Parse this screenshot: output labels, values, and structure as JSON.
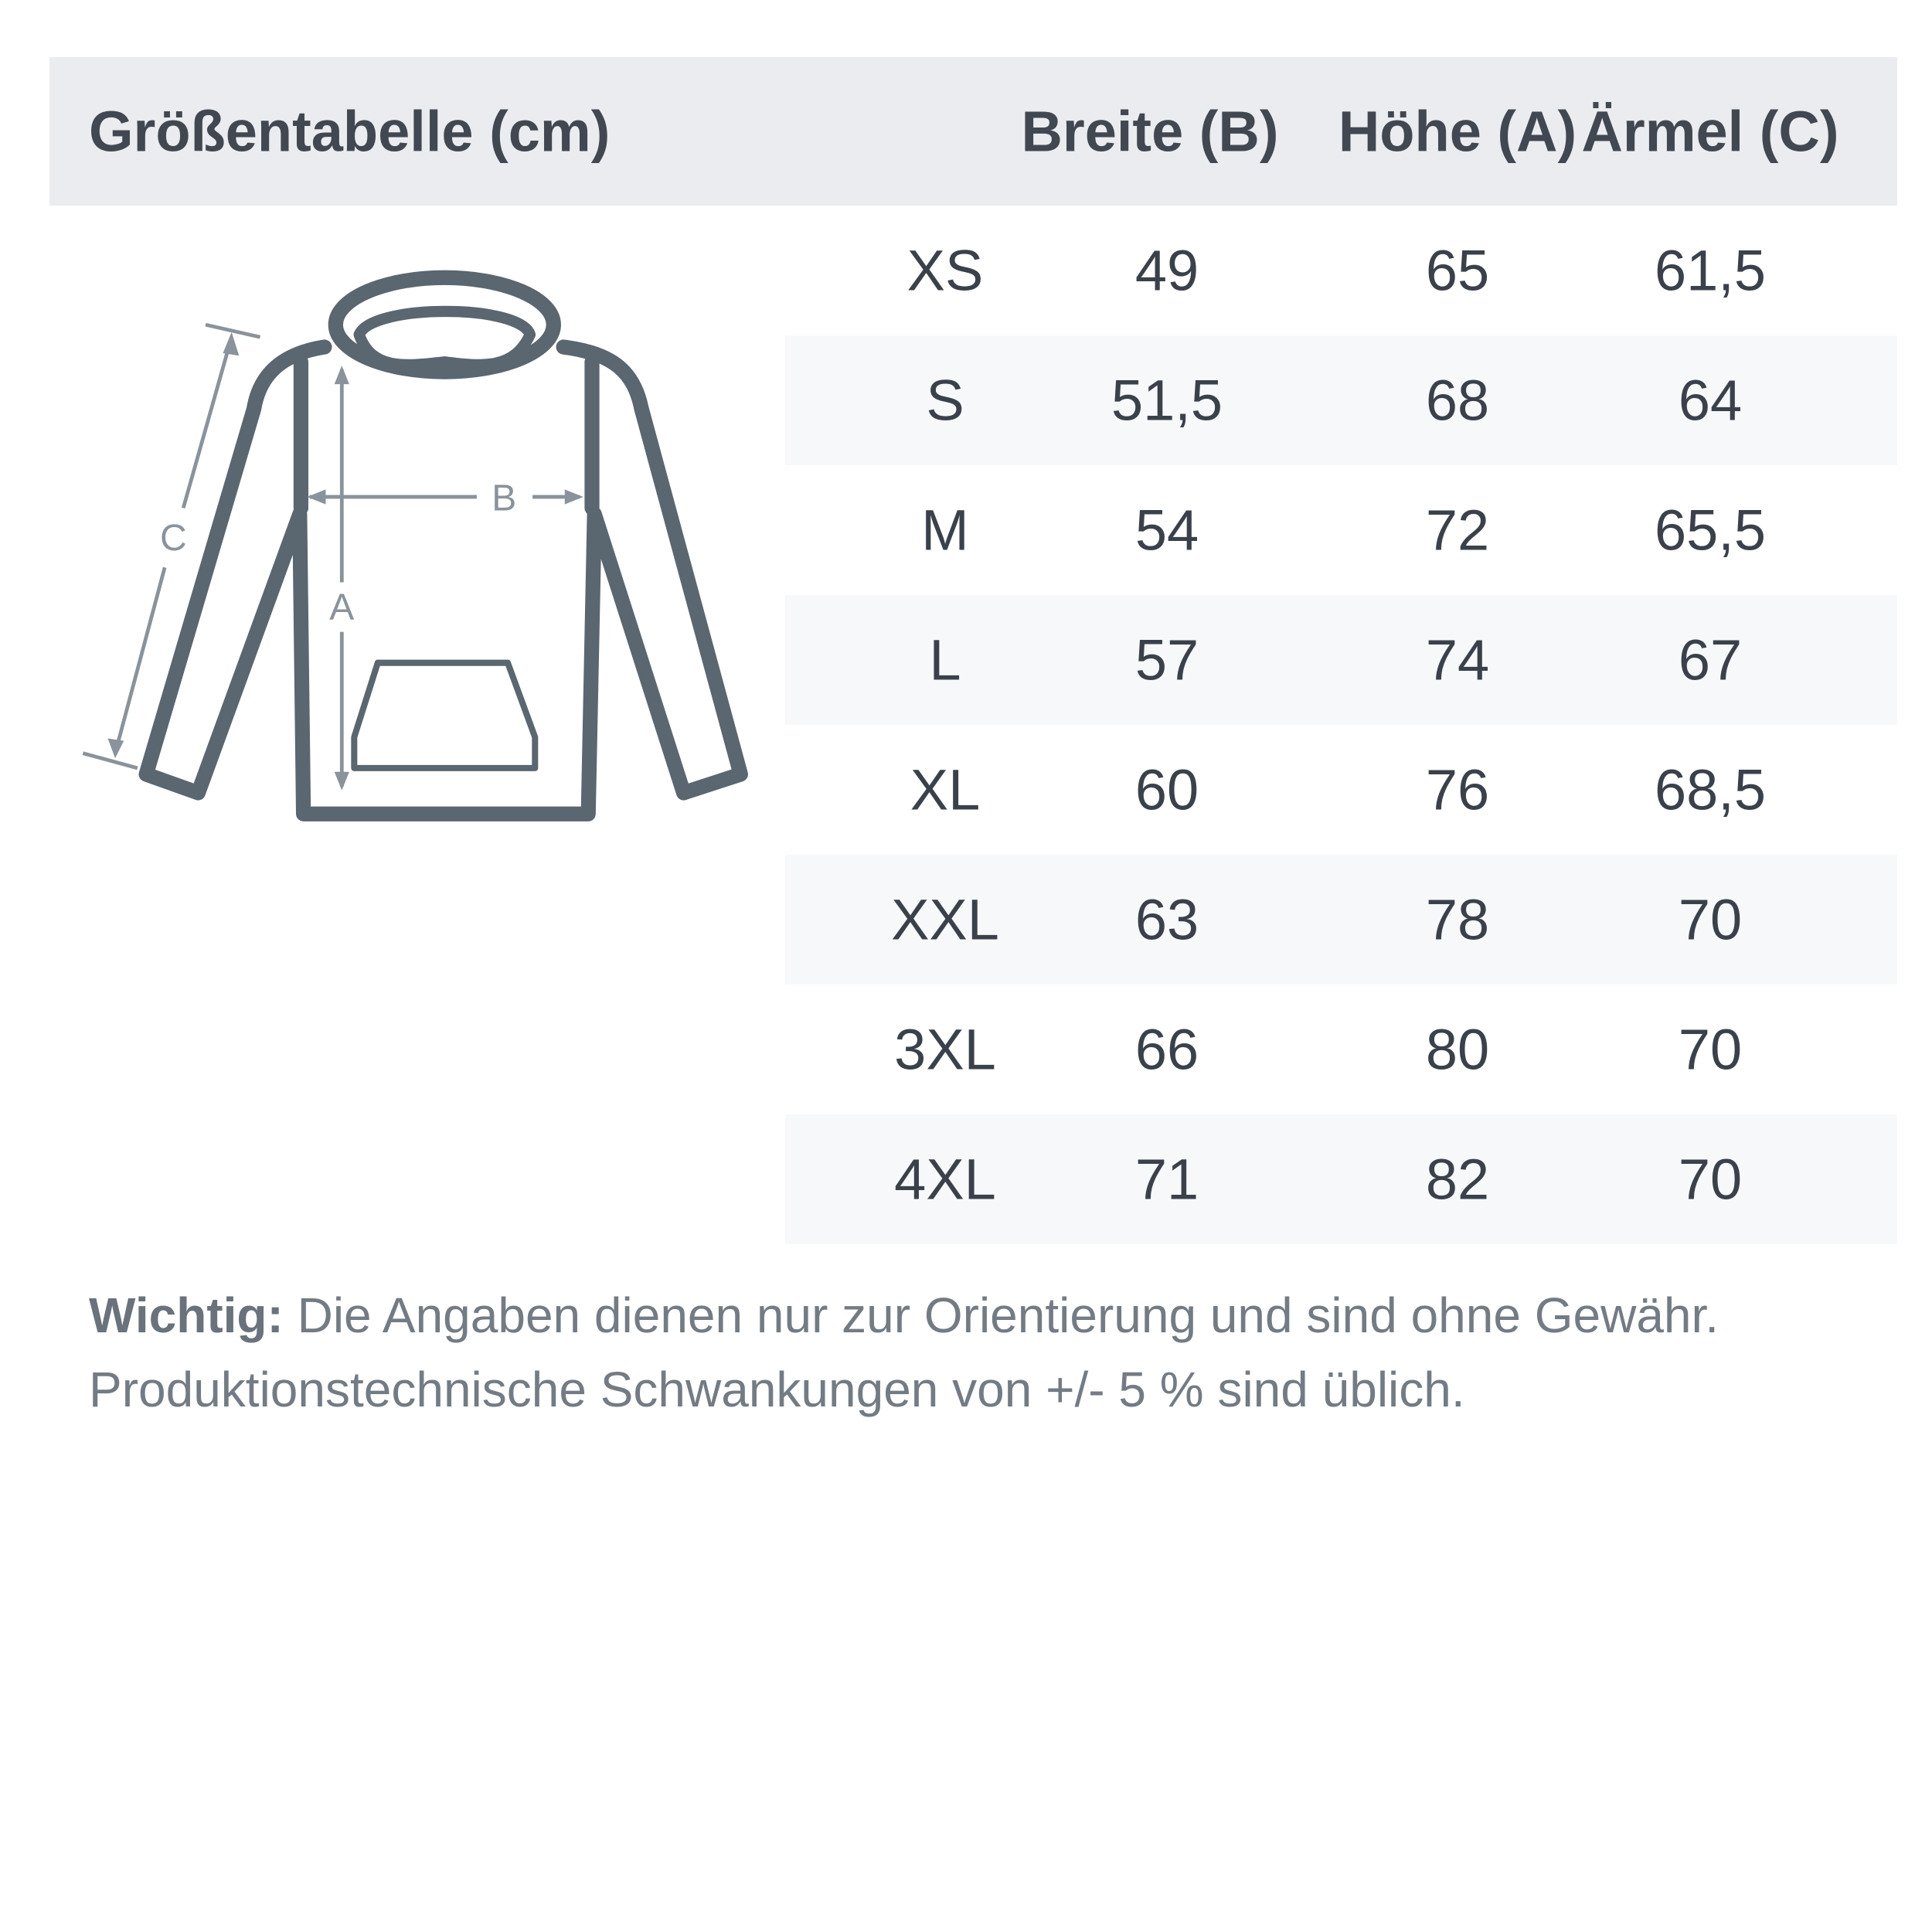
{
  "header": {
    "title": "Größentabelle (cm)",
    "columns": [
      "Breite (B)",
      "Höhe (A)",
      "Ärmel (C)"
    ]
  },
  "diagram": {
    "icon": "hoodie-measurement-icon",
    "labels": {
      "width": "B",
      "height": "A",
      "sleeve": "C"
    }
  },
  "rows": [
    {
      "size": "XS",
      "breite": "49",
      "hoehe": "65",
      "aermel": "61,5"
    },
    {
      "size": "S",
      "breite": "51,5",
      "hoehe": "68",
      "aermel": "64"
    },
    {
      "size": "M",
      "breite": "54",
      "hoehe": "72",
      "aermel": "65,5"
    },
    {
      "size": "L",
      "breite": "57",
      "hoehe": "74",
      "aermel": "67"
    },
    {
      "size": "XL",
      "breite": "60",
      "hoehe": "76",
      "aermel": "68,5"
    },
    {
      "size": "XXL",
      "breite": "63",
      "hoehe": "78",
      "aermel": "70"
    },
    {
      "size": "3XL",
      "breite": "66",
      "hoehe": "80",
      "aermel": "70"
    },
    {
      "size": "4XL",
      "breite": "71",
      "hoehe": "82",
      "aermel": "70"
    }
  ],
  "note": {
    "label": "Wichtig:",
    "line1": " Die Angaben dienen nur zur Orientierung und sind ohne Gewähr.",
    "line2": "Produktionstechnische Schwankungen von +/- 5 % sind üblich."
  },
  "colors": {
    "header_bg": "#ebecef",
    "stripe": "#f7f8fa",
    "text": "#3f4650",
    "garment": "#5a6670",
    "measure": "#8a939b"
  }
}
